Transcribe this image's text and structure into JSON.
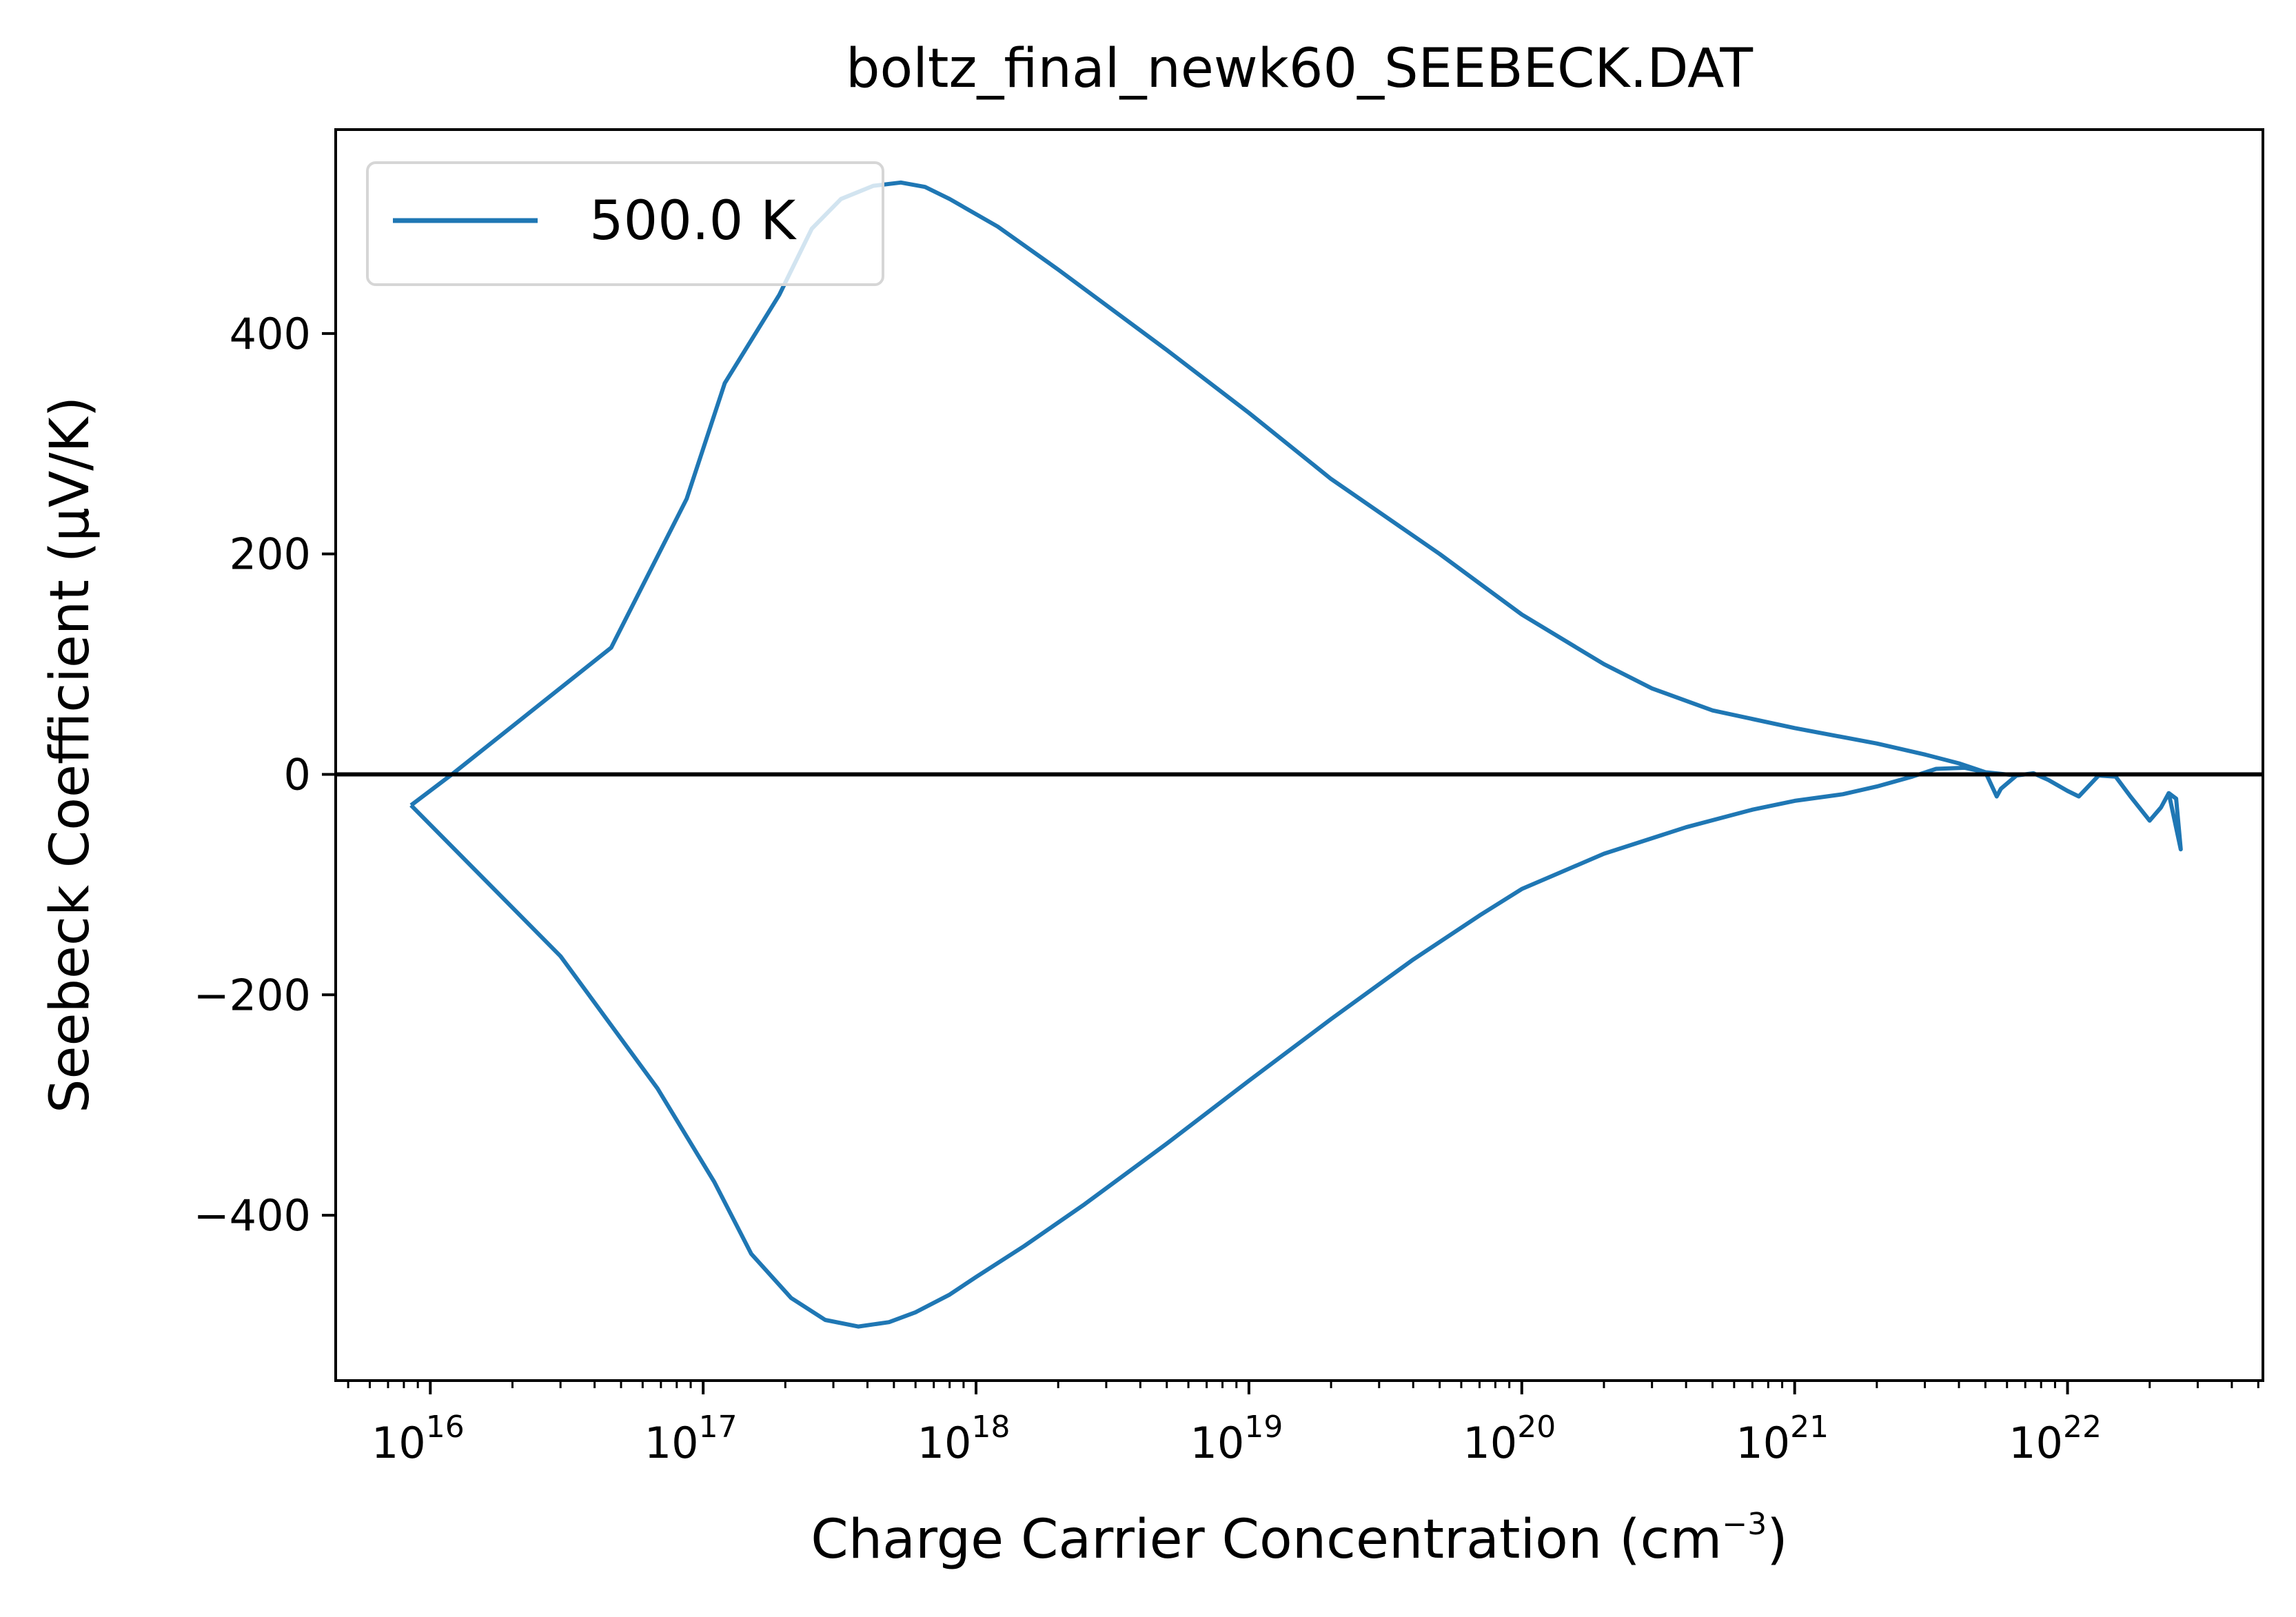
{
  "chart_data": {
    "type": "line",
    "title": "boltz_final_newk60_SEEBECK.DAT",
    "xlabel": "Charge Carrier Concentration (cm",
    "xlabel_exp": "−3",
    "xlabel_suffix": ")",
    "ylabel": "Seebeck Coefficient (μV/K)",
    "xscale": "log",
    "xlim": [
      4500000000000000.0,
      5.2e+22
    ],
    "ylim": [
      -550,
      585
    ],
    "x_ticks": [
      {
        "base": "10",
        "exp": "16",
        "value": 1e+16
      },
      {
        "base": "10",
        "exp": "17",
        "value": 1e+17
      },
      {
        "base": "10",
        "exp": "18",
        "value": 1e+18
      },
      {
        "base": "10",
        "exp": "19",
        "value": 1e+19
      },
      {
        "base": "10",
        "exp": "20",
        "value": 1e+20
      },
      {
        "base": "10",
        "exp": "21",
        "value": 1e+21
      },
      {
        "base": "10",
        "exp": "22",
        "value": 1e+22
      }
    ],
    "y_ticks": [
      {
        "label": "−400",
        "value": -400
      },
      {
        "label": "−200",
        "value": -200
      },
      {
        "label": "0",
        "value": 0
      },
      {
        "label": "200",
        "value": 200
      },
      {
        "label": "400",
        "value": 400
      }
    ],
    "reference_line": {
      "y": 0,
      "color": "#000000"
    },
    "legend": {
      "position": "top-left"
    },
    "series": [
      {
        "name": "500.0 K",
        "color": "#1f77b4",
        "points": [
          [
            8500000000000000.0,
            -28
          ],
          [
            3e+16,
            -165
          ],
          [
            6.8e+16,
            -285
          ],
          [
            1.1e+17,
            -370
          ],
          [
            1.5e+17,
            -435
          ],
          [
            2.1e+17,
            -475
          ],
          [
            2.8e+17,
            -495
          ],
          [
            3.7e+17,
            -501
          ],
          [
            4.8e+17,
            -497
          ],
          [
            6e+17,
            -488
          ],
          [
            8e+17,
            -472
          ],
          [
            1e+18,
            -456
          ],
          [
            1.5e+18,
            -428
          ],
          [
            2.5e+18,
            -390
          ],
          [
            5e+18,
            -335
          ],
          [
            1e+19,
            -278
          ],
          [
            2e+19,
            -222
          ],
          [
            4e+19,
            -168
          ],
          [
            7e+19,
            -128
          ],
          [
            1e+20,
            -104
          ],
          [
            2e+20,
            -72
          ],
          [
            4e+20,
            -48
          ],
          [
            7e+20,
            -32
          ],
          [
            1e+21,
            -24
          ],
          [
            1.5e+21,
            -18
          ],
          [
            2e+21,
            -11
          ],
          [
            2.7e+21,
            -2
          ],
          [
            3.3e+21,
            5
          ],
          [
            4.2e+21,
            6
          ],
          [
            5e+21,
            2
          ],
          [
            5.5e+21,
            -20
          ],
          [
            5.7e+21,
            -13
          ],
          [
            6.5e+21,
            -1
          ],
          [
            7.5e+21,
            1
          ],
          [
            8.5e+21,
            -5
          ],
          [
            1e+22,
            -15
          ],
          [
            1.1e+22,
            -20
          ],
          [
            1.3e+22,
            -1
          ],
          [
            1.5e+22,
            -2
          ],
          [
            1.7e+22,
            -20
          ],
          [
            2e+22,
            -42
          ],
          [
            2.2e+22,
            -30
          ],
          [
            2.35e+22,
            -17
          ],
          [
            2.5e+22,
            -22
          ],
          [
            2.6e+22,
            -68
          ],
          [
            2.35e+22,
            -17
          ],
          [
            2.2e+22,
            -30
          ],
          [
            2e+22,
            -42
          ],
          [
            1.7e+22,
            -20
          ],
          [
            1.5e+22,
            -2
          ],
          [
            1.3e+22,
            -1
          ],
          [
            1.1e+22,
            -20
          ],
          [
            1e+22,
            -15
          ],
          [
            8.5e+21,
            -5
          ],
          [
            7.5e+21,
            1
          ],
          [
            6.5e+21,
            -1
          ],
          [
            5e+21,
            2
          ],
          [
            4e+21,
            10
          ],
          [
            3e+21,
            18
          ],
          [
            2e+21,
            28
          ],
          [
            1e+21,
            42
          ],
          [
            5e+20,
            58
          ],
          [
            3e+20,
            78
          ],
          [
            2e+20,
            100
          ],
          [
            1e+20,
            145
          ],
          [
            5e+19,
            200
          ],
          [
            2e+19,
            268
          ],
          [
            1e+19,
            328
          ],
          [
            5e+18,
            385
          ],
          [
            2e+18,
            458
          ],
          [
            1.2e+18,
            497
          ],
          [
            8e+17,
            522
          ],
          [
            6.5e+17,
            533
          ],
          [
            5.3e+17,
            537
          ],
          [
            4.2e+17,
            534
          ],
          [
            3.2e+17,
            522
          ],
          [
            2.5e+17,
            495
          ],
          [
            1.9e+17,
            435
          ],
          [
            1.2e+17,
            355
          ],
          [
            8.7e+16,
            250
          ],
          [
            4.6e+16,
            115
          ],
          [
            1.2e+16,
            0
          ],
          [
            8500000000000000.0,
            -28
          ]
        ]
      }
    ]
  }
}
